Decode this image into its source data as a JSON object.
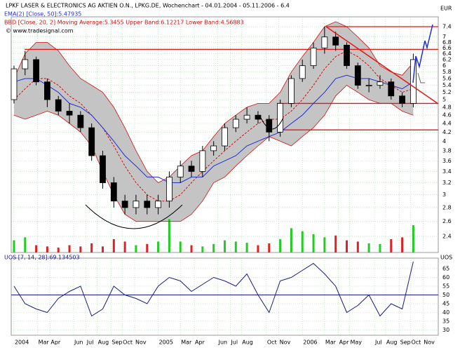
{
  "chart_data": [
    {
      "type": "candlestick",
      "title": "LPKF LASER & ELECTRONICS AG AKTIEN O.N., LPKG.DE, Wochenchart - 04.01.2004 - 05.11.2006 - 6.4",
      "source": "© www.tradesignal.com",
      "y_label": "EUR",
      "x": [
        0,
        4,
        8,
        12,
        16,
        20,
        24,
        28,
        32,
        36,
        40,
        44,
        48,
        52,
        56,
        60,
        64,
        68,
        72,
        76,
        80,
        84,
        88,
        92,
        96,
        100,
        104,
        108,
        112,
        116,
        120,
        124,
        128,
        132,
        136,
        140,
        144
      ],
      "xlim": [
        -1,
        153
      ],
      "open": [
        5.0,
        5.9,
        6.2,
        5.5,
        5.0,
        4.7,
        4.6,
        4.3,
        3.7,
        3.2,
        2.9,
        2.8,
        2.9,
        2.8,
        2.9,
        3.3,
        3.5,
        3.4,
        3.8,
        3.9,
        4.3,
        4.5,
        4.6,
        4.5,
        4.2,
        4.9,
        5.6,
        6.0,
        6.6,
        7.0,
        6.7,
        6.0,
        5.4,
        5.4,
        5.5,
        5.1,
        4.9
      ],
      "high": [
        6.0,
        6.5,
        6.3,
        5.6,
        5.1,
        4.9,
        4.7,
        4.4,
        3.8,
        3.3,
        3.0,
        3.0,
        3.0,
        3.0,
        3.4,
        3.6,
        3.6,
        3.9,
        4.0,
        4.4,
        4.6,
        4.8,
        4.7,
        4.6,
        5.0,
        5.7,
        6.2,
        6.8,
        7.4,
        7.2,
        6.8,
        6.1,
        5.6,
        5.7,
        5.6,
        5.2,
        6.4
      ],
      "low": [
        4.9,
        5.7,
        5.4,
        4.8,
        4.6,
        4.4,
        4.2,
        3.6,
        3.1,
        2.8,
        2.7,
        2.7,
        2.7,
        2.7,
        2.8,
        3.2,
        3.3,
        3.3,
        3.7,
        3.8,
        4.2,
        4.4,
        4.4,
        4.0,
        4.1,
        4.8,
        5.5,
        5.9,
        6.4,
        6.5,
        5.9,
        5.3,
        5.2,
        5.3,
        5.0,
        4.8,
        4.8
      ],
      "close": [
        5.9,
        6.2,
        5.5,
        5.0,
        4.7,
        4.6,
        4.3,
        3.7,
        3.2,
        2.9,
        2.8,
        2.9,
        2.8,
        2.9,
        3.3,
        3.5,
        3.4,
        3.8,
        3.9,
        4.3,
        4.5,
        4.6,
        4.5,
        4.2,
        4.9,
        5.6,
        6.0,
        6.6,
        7.0,
        6.7,
        6.0,
        5.4,
        5.4,
        5.5,
        5.1,
        4.9,
        6.2
      ],
      "up_color": "#ffffff",
      "down_color": "#000000",
      "series": [
        {
          "name": "EMA(2) [Close, 50]:5.47935",
          "color": "#1f2fd0",
          "values": [
            5.5,
            5.6,
            5.6,
            5.4,
            5.2,
            4.9,
            4.8,
            4.6,
            4.3,
            4.0,
            3.7,
            3.5,
            3.3,
            3.3,
            3.2,
            3.2,
            3.3,
            3.3,
            3.5,
            3.6,
            3.7,
            3.9,
            4.0,
            4.1,
            4.2,
            4.4,
            4.6,
            4.9,
            5.2,
            5.6,
            5.7,
            5.6,
            5.6,
            5.5,
            5.4,
            5.3,
            5.5
          ]
        },
        {
          "name": "BBD [Close, 20, 2] Moving Average:5.3455 Upper Band:6.12217 Lower Band:4.56883",
          "color": "#d01010",
          "band_color": "#c4c4c4",
          "values": [
            5.0,
            5.3,
            5.6,
            5.6,
            5.4,
            5.1,
            4.9,
            4.6,
            4.3,
            3.9,
            3.5,
            3.2,
            3.0,
            2.9,
            2.9,
            3.0,
            3.2,
            3.4,
            3.6,
            3.8,
            4.0,
            4.2,
            4.4,
            4.5,
            4.5,
            4.7,
            5.0,
            5.4,
            5.9,
            6.3,
            6.5,
            6.3,
            6.0,
            5.6,
            5.4,
            5.2,
            5.3
          ],
          "upper": [
            5.6,
            6.4,
            6.8,
            6.8,
            6.5,
            6.0,
            5.6,
            5.4,
            5.2,
            4.8,
            4.3,
            3.8,
            3.4,
            3.2,
            3.3,
            3.5,
            3.7,
            3.8,
            4.1,
            4.4,
            4.6,
            4.8,
            4.9,
            4.9,
            5.2,
            5.8,
            6.3,
            6.8,
            7.4,
            7.6,
            7.4,
            7.0,
            6.6,
            6.0,
            5.8,
            5.7,
            6.1
          ],
          "lower": [
            4.6,
            4.5,
            4.6,
            4.7,
            4.6,
            4.4,
            4.2,
            3.9,
            3.4,
            3.0,
            2.7,
            2.6,
            2.6,
            2.6,
            2.6,
            2.6,
            2.7,
            2.9,
            3.2,
            3.3,
            3.5,
            3.7,
            3.9,
            4.1,
            4.0,
            3.9,
            4.1,
            4.3,
            4.6,
            5.1,
            5.4,
            5.2,
            5.0,
            4.9,
            4.9,
            4.7,
            4.6
          ]
        }
      ],
      "volume": {
        "values": [
          20,
          25,
          12,
          10,
          8,
          12,
          10,
          15,
          10,
          22,
          18,
          12,
          14,
          18,
          55,
          18,
          12,
          10,
          14,
          20,
          18,
          16,
          12,
          15,
          22,
          40,
          35,
          30,
          25,
          28,
          20,
          18,
          15,
          14,
          22,
          25,
          45
        ],
        "ylim": [
          0,
          240
        ],
        "up_color": "#22cc22",
        "down_color": "#dd2222"
      },
      "levels": [
        7.4,
        6.55,
        4.9,
        4.25
      ],
      "level_color": "#e01818",
      "log_scale": true,
      "ylim": [
        2.2,
        7.8
      ],
      "yticks": [
        2.4,
        2.6,
        2.8,
        3,
        3.2,
        3.4,
        3.6,
        3.8,
        4,
        4.2,
        4.4,
        4.6,
        4.8,
        5,
        5.2,
        5.4,
        5.6,
        5.8,
        6,
        6.2,
        6.4,
        6.6,
        6.8,
        7,
        7.4
      ],
      "grid": true
    },
    {
      "type": "line",
      "y_label": "UOS",
      "x": [
        0,
        4,
        8,
        12,
        16,
        20,
        24,
        28,
        32,
        36,
        40,
        44,
        48,
        52,
        56,
        60,
        64,
        68,
        72,
        76,
        80,
        84,
        88,
        92,
        96,
        100,
        104,
        108,
        112,
        116,
        120,
        124,
        128,
        132,
        136,
        140,
        144
      ],
      "xlim": [
        -1,
        153
      ],
      "xticks": [
        {
          "value": 0,
          "label": "2004"
        },
        {
          "value": 8.5,
          "label": "Mar"
        },
        {
          "value": 13,
          "label": "Apr"
        },
        {
          "value": 21.5,
          "label": "Jun"
        },
        {
          "value": 26,
          "label": "Jul"
        },
        {
          "value": 30,
          "label": "Aug"
        },
        {
          "value": 35,
          "label": "Sep"
        },
        {
          "value": 39,
          "label": "Oct"
        },
        {
          "value": 43.5,
          "label": "Nov"
        },
        {
          "value": 52,
          "label": "2005"
        },
        {
          "value": 60,
          "label": "Mar"
        },
        {
          "value": 65,
          "label": "Apr"
        },
        {
          "value": 73.5,
          "label": "Jun"
        },
        {
          "value": 78,
          "label": "Jul"
        },
        {
          "value": 82,
          "label": "Aug"
        },
        {
          "value": 91,
          "label": "Oct"
        },
        {
          "value": 95.5,
          "label": "Nov"
        },
        {
          "value": 104,
          "label": "2006"
        },
        {
          "value": 112,
          "label": "Mar"
        },
        {
          "value": 117,
          "label": "Apr"
        },
        {
          "value": 121,
          "label": "May"
        },
        {
          "value": 130,
          "label": "Jul"
        },
        {
          "value": 134,
          "label": "Aug"
        },
        {
          "value": 139,
          "label": "Sep"
        },
        {
          "value": 143,
          "label": "Oct"
        },
        {
          "value": 147.5,
          "label": "Nov"
        }
      ],
      "series": [
        {
          "name": "UOS [7, 14, 28]:69.134503",
          "color": "#1a1a80",
          "values": [
            55,
            45,
            42,
            40,
            48,
            52,
            55,
            38,
            42,
            55,
            50,
            48,
            45,
            55,
            60,
            58,
            52,
            56,
            60,
            58,
            55,
            62,
            50,
            40,
            58,
            60,
            64,
            68,
            62,
            55,
            40,
            44,
            50,
            38,
            45,
            42,
            69
          ]
        }
      ],
      "reference": 50,
      "ylim": [
        27,
        71
      ],
      "yticks": [
        30,
        35,
        40,
        45,
        50,
        55,
        60,
        65
      ],
      "grid": true
    }
  ]
}
